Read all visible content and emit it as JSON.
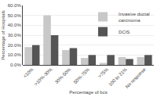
{
  "chart_data": {
    "type": "bar",
    "xlabel": "Percentage of bcs",
    "ylabel": "Percentage of Hospitals",
    "categories": [
      "<10%",
      ">10%-30%",
      "30%-50%",
      "50%-75%",
      ">75%",
      "100 to 21%",
      "No response"
    ],
    "series": [
      {
        "name": "Invasive ductal\ncarcinoma",
        "color": "#c8c8c8",
        "values": [
          18,
          50,
          15,
          7,
          2,
          8,
          8
        ]
      },
      {
        "name": "DCIS",
        "color": "#555555",
        "values": [
          20,
          30,
          17,
          10,
          10,
          6,
          10
        ]
      }
    ],
    "ylim": [
      0,
      60
    ],
    "yticks": [
      {
        "value": 0,
        "label": "0.0%"
      },
      {
        "value": 10,
        "label": "10.0%"
      },
      {
        "value": 20,
        "label": "20.0%"
      },
      {
        "value": 30,
        "label": "30.0%"
      },
      {
        "value": 40,
        "label": "40.0%"
      },
      {
        "value": 50,
        "label": "50.0%"
      },
      {
        "value": 60,
        "label": "60.0%"
      }
    ],
    "grid": true,
    "legend": "upper right"
  }
}
